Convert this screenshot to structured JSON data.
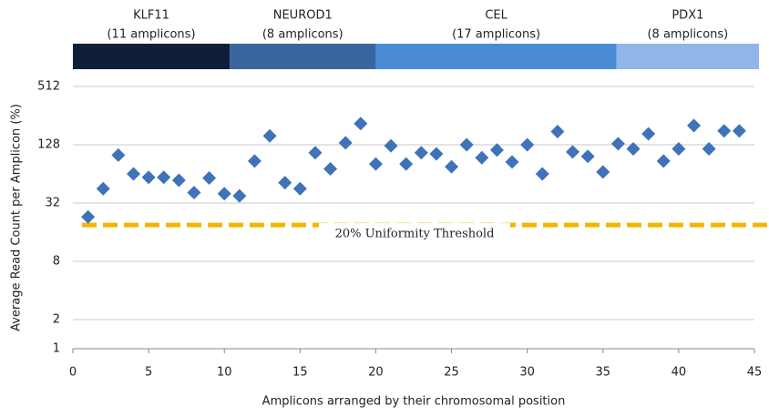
{
  "chart_data": {
    "type": "scatter",
    "x_label": "Amplicons arranged by their chromosomal position",
    "y_label": "Average Read Count per Amplicon (%)",
    "regions": [
      {
        "label": "KLF11",
        "sublabel": "(11 amplicons)",
        "start": 0,
        "end": 10.35,
        "color": "#0f1f3a"
      },
      {
        "label": "NEUROD1",
        "sublabel": "(8 amplicons)",
        "start": 10.35,
        "end": 20,
        "color": "#3a66a0"
      },
      {
        "label": "CEL",
        "sublabel": "(17 amplicons)",
        "start": 20,
        "end": 35.9,
        "color": "#4a8bd6"
      },
      {
        "label": "PDX1",
        "sublabel": "(8 amplicons)",
        "start": 35.9,
        "end": 45.3,
        "color": "#8fb6e6"
      }
    ],
    "x": [
      1,
      2,
      3,
      4,
      5,
      6,
      7,
      8,
      9,
      10,
      11,
      12,
      13,
      14,
      15,
      16,
      17,
      18,
      19,
      20,
      21,
      22,
      23,
      24,
      25,
      26,
      27,
      28,
      29,
      30,
      31,
      32,
      33,
      34,
      35,
      36,
      37,
      38,
      39,
      40,
      41,
      42,
      43,
      44
    ],
    "series": [
      {
        "color": "#3f72b8",
        "values": [
          23,
          45,
          100,
          64,
          59,
          59,
          55,
          41,
          58,
          40,
          38,
          87,
          158,
          52,
          45,
          106,
          72,
          134,
          212,
          81,
          125,
          81,
          106,
          103,
          76,
          128,
          94,
          113,
          85,
          128,
          64,
          175,
          108,
          97,
          67,
          131,
          116,
          166,
          87,
          116,
          202,
          116,
          178,
          178
        ]
      }
    ],
    "threshold": {
      "label": "20% Uniformity Threshold",
      "value": 19,
      "color": "#f2b600"
    },
    "xlim": [
      0,
      45
    ],
    "xticks": [
      0,
      5,
      10,
      15,
      20,
      25,
      30,
      35,
      40,
      45
    ],
    "ylim": [
      1,
      512
    ],
    "yticks": [
      1,
      2,
      8,
      32,
      128,
      512
    ],
    "log_y": true,
    "grid": true
  }
}
